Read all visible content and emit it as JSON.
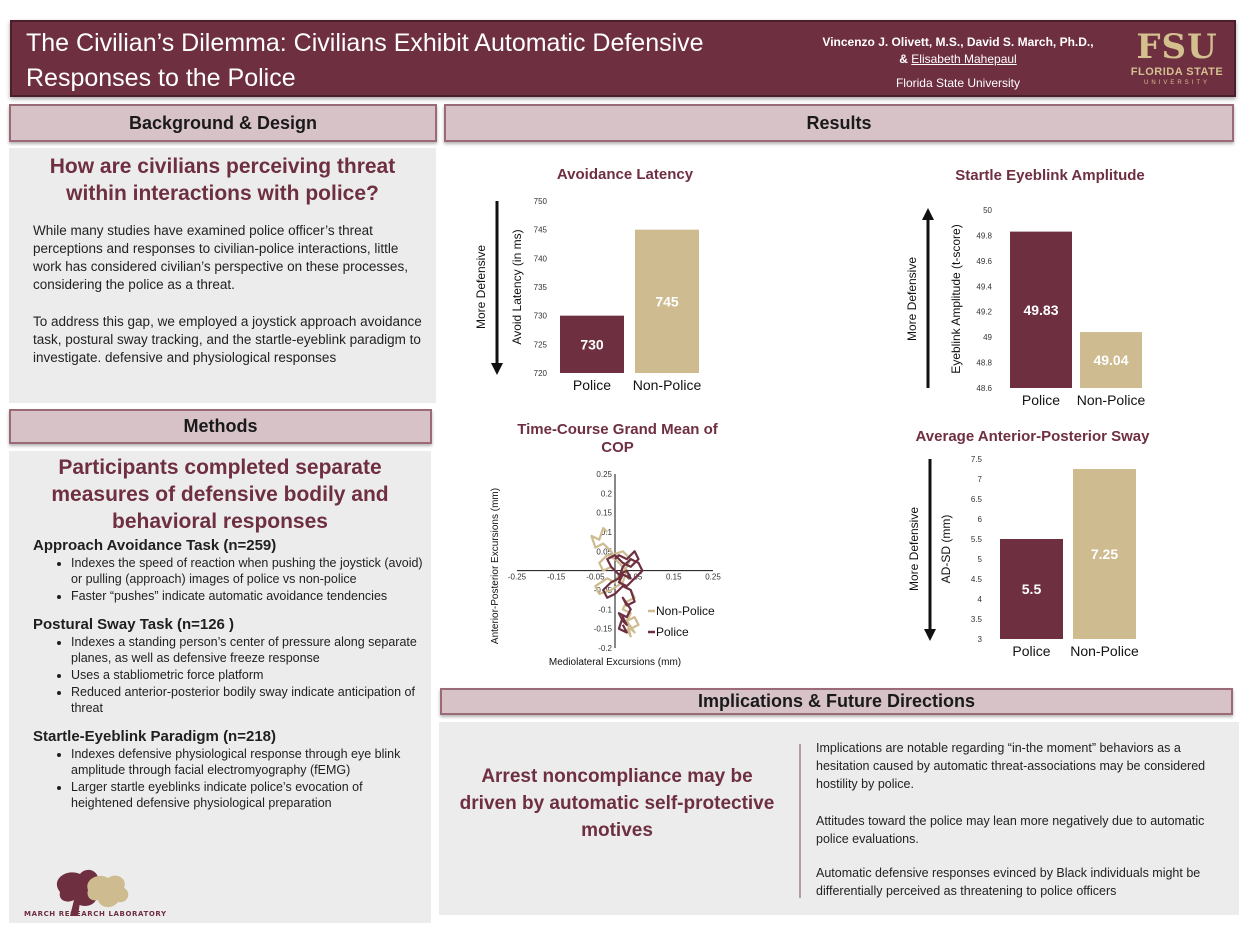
{
  "header": {
    "title": "The Civilian’s Dilemma: Civilians Exhibit Automatic Defensive Responses to the Police",
    "authors_line1": "Vincenzo J. Olivett, M.S., David S. March, Ph.D.,",
    "authors_amp": "& ",
    "authors_underlined": "Elisabeth Mahepaul",
    "university": "Florida State University",
    "logo_main": "FSU",
    "logo_sub": "FLORIDA STATE",
    "logo_sub2": "UNIVERSITY"
  },
  "sections": {
    "background": "Background & Design",
    "methods": "Methods",
    "results": "Results",
    "implications": "Implications & Future Directions"
  },
  "background": {
    "question": "How are civilians perceiving threat within interactions with police?",
    "para1": "While many studies have examined police officer’s threat perceptions and responses to civilian-police interactions, little work has considered civilian’s perspective on these processes, considering the police as a threat.",
    "para2": "To address this gap, we employed a joystick approach avoidance task, postural sway tracking, and the startle-eyeblink paradigm to investigate. defensive and physiological responses"
  },
  "methods": {
    "headline": "Participants completed separate measures of defensive bodily and behavioral responses",
    "tasks": [
      {
        "title": "Approach Avoidance Task (n=259)",
        "bullets": [
          "Indexes the speed of reaction when pushing the joystick (avoid) or pulling (approach) images of police vs non-police",
          "Faster “pushes” indicate automatic avoidance tendencies"
        ]
      },
      {
        "title": "Postural Sway Task (n=126 )",
        "bullets": [
          "Indexes a standing person’s center of pressure along separate planes, as well as defensive freeze response",
          "Uses a stabliometric force platform",
          "Reduced anterior-posterior bodily sway indicate anticipation of threat"
        ]
      },
      {
        "title": "Startle-Eyeblink Paradigm (n=218)",
        "bullets": [
          "Indexes defensive physiological response through eye blink amplitude through facial electromyography (fEMG)",
          "Larger startle eyeblinks indicate police’s evocation of heightened defensive physiological preparation"
        ]
      }
    ],
    "lab_name": "March Research Laboratory"
  },
  "implications": {
    "headline": "Arrest noncompliance may be driven by automatic self-protective motives",
    "points": [
      "Implications are notable regarding “in-the moment” behaviors as a hesitation caused by automatic threat-associations may be considered hostility by police.",
      "Attitudes toward the police may lean more negatively due to automatic police evaluations.",
      "Automatic defensive responses evinced by Black individuals might be differentially perceived as threatening to police officers"
    ]
  },
  "colors": {
    "maroon": "#6e2f41",
    "gold": "#cebb8f"
  },
  "chart_data": [
    {
      "type": "bar",
      "title": "Avoidance Latency",
      "categories": [
        "Police",
        "Non-Police"
      ],
      "values": [
        730,
        745
      ],
      "data_labels": [
        "730",
        "745"
      ],
      "ylabel": "Avoid Latency (in ms)",
      "side_label": "More Defensive",
      "side_arrow": "down",
      "ylim": [
        720,
        750
      ],
      "yticks": [
        "720",
        "725",
        "730",
        "735",
        "740",
        "745",
        "750"
      ],
      "colors": [
        "#6e2f41",
        "#cebb8f"
      ]
    },
    {
      "type": "bar",
      "title": "Startle Eyeblink Amplitude",
      "categories": [
        "Police",
        "Non-Police"
      ],
      "values": [
        49.83,
        49.04
      ],
      "data_labels": [
        "49.83",
        "49.04"
      ],
      "ylabel": "Eyeblink Amplitude (t-score)",
      "side_label": "More Defensive",
      "side_arrow": "up",
      "ylim": [
        48.6,
        50
      ],
      "yticks": [
        "48.6",
        "48.8",
        "49",
        "49.2",
        "49.4",
        "49.6",
        "49.8",
        "50"
      ],
      "colors": [
        "#6e2f41",
        "#cebb8f"
      ]
    },
    {
      "type": "line",
      "title": "Time-Course Grand Mean of COP",
      "xlabel": "Mediolateral Excursions (mm)",
      "ylabel": "Anterior-Posterior Excursions (mm)",
      "xlim": [
        -0.25,
        0.25
      ],
      "ylim": [
        -0.2,
        0.25
      ],
      "xticks": [
        "-0.25",
        "-0.15",
        "-0.05",
        "0.05",
        "0.15",
        "0.25"
      ],
      "xtick_values": [
        -0.25,
        -0.15,
        -0.05,
        0.05,
        0.15,
        0.25
      ],
      "yticks": [
        "0.25",
        "0.2",
        "0.15",
        "0.1",
        "0.05",
        "-0.05",
        "-0.1",
        "-0.15",
        "-0.2"
      ],
      "ytick_values": [
        0.25,
        0.2,
        0.15,
        0.1,
        0.05,
        -0.05,
        -0.1,
        -0.15,
        -0.2
      ],
      "legend": "bottom-right",
      "series": [
        {
          "name": "Non-Police",
          "color": "#cebb8f",
          "x": [
            -0.02,
            -0.03,
            -0.04,
            -0.06,
            -0.05,
            -0.03,
            -0.01,
            0.0,
            -0.02,
            -0.04,
            -0.03,
            -0.01,
            0.01,
            0.0,
            -0.02,
            -0.05,
            -0.04,
            -0.01,
            0.02,
            0.03,
            0.01,
            -0.01,
            0.02,
            0.04,
            0.03,
            0.01,
            0.02,
            0.04,
            0.05,
            0.03,
            0.02,
            0.04,
            0.03,
            0.05,
            0.06,
            0.04,
            0.05,
            0.03,
            0.04,
            0.03
          ],
          "y": [
            0.1,
            0.11,
            0.08,
            0.09,
            0.06,
            0.07,
            0.05,
            0.03,
            0.04,
            0.02,
            0.0,
            0.01,
            -0.01,
            -0.03,
            -0.02,
            -0.04,
            -0.06,
            -0.05,
            -0.03,
            0.0,
            0.02,
            0.04,
            0.05,
            0.03,
            0.01,
            -0.02,
            -0.04,
            -0.05,
            -0.07,
            -0.08,
            -0.1,
            -0.11,
            -0.13,
            -0.12,
            -0.14,
            -0.15,
            -0.16,
            -0.13,
            -0.17,
            -0.15
          ]
        },
        {
          "name": "Police",
          "color": "#6e2f41",
          "x": [
            0.0,
            0.01,
            0.03,
            0.05,
            0.06,
            0.04,
            0.02,
            0.0,
            -0.02,
            -0.01,
            0.01,
            0.03,
            0.04,
            0.02,
            0.01,
            0.03,
            0.05,
            0.07,
            0.06,
            0.04,
            0.02,
            0.01,
            -0.01,
            -0.03,
            -0.02,
            0.0,
            0.02,
            0.04,
            0.05,
            0.03,
            0.02,
            0.04,
            0.03,
            0.01,
            0.02,
            0.03,
            0.02,
            0.01,
            0.03,
            0.02
          ],
          "y": [
            0.03,
            0.04,
            0.03,
            0.05,
            0.03,
            0.01,
            0.02,
            0.04,
            0.03,
            0.01,
            -0.01,
            0.0,
            -0.02,
            -0.01,
            -0.03,
            -0.04,
            -0.02,
            0.0,
            0.02,
            0.03,
            0.01,
            -0.02,
            -0.03,
            -0.05,
            -0.07,
            -0.06,
            -0.04,
            -0.05,
            -0.08,
            -0.09,
            -0.07,
            -0.1,
            -0.12,
            -0.11,
            -0.13,
            -0.14,
            -0.12,
            -0.15,
            -0.16,
            -0.14
          ]
        }
      ]
    },
    {
      "type": "bar",
      "title": "Average Anterior-Posterior Sway",
      "categories": [
        "Police",
        "Non-Police"
      ],
      "values": [
        5.5,
        7.25
      ],
      "data_labels": [
        "5.5",
        "7.25"
      ],
      "ylabel": "AD-SD (mm)",
      "side_label": "More Defensive",
      "side_arrow": "down",
      "ylim": [
        3,
        7.5
      ],
      "yticks": [
        "3",
        "3.5",
        "4",
        "4.5",
        "5",
        "5.5",
        "6",
        "6.5",
        "7",
        "7.5"
      ],
      "colors": [
        "#6e2f41",
        "#cebb8f"
      ]
    }
  ]
}
